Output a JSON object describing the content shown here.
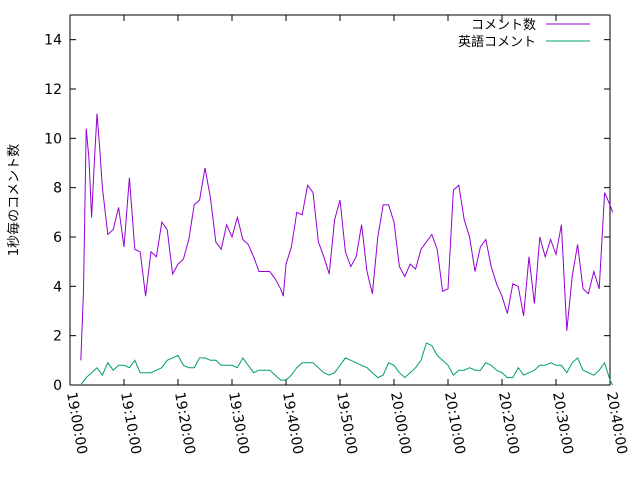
{
  "chart_data": {
    "type": "line",
    "title": "",
    "xlabel": "",
    "ylabel": "1秒毎のコメント数",
    "x_tick_labels": [
      "19:00:00",
      "19:10:00",
      "19:20:00",
      "19:30:00",
      "19:40:00",
      "19:50:00",
      "20:00:00",
      "20:10:00",
      "20:20:00",
      "20:30:00",
      "20:40:00"
    ],
    "y_tick_labels": [
      "0",
      "2",
      "4",
      "6",
      "8",
      "10",
      "12",
      "14"
    ],
    "xlim_minutes": [
      0,
      100
    ],
    "ylim": [
      0,
      15
    ],
    "grid": false,
    "legend_position": "top-right",
    "series": [
      {
        "name": "コメント数",
        "color": "#9400d3",
        "points": [
          [
            2.0,
            1.0
          ],
          [
            2.5,
            3.8
          ],
          [
            3.0,
            10.4
          ],
          [
            3.5,
            9.2
          ],
          [
            4.0,
            6.8
          ],
          [
            4.5,
            9.0
          ],
          [
            5.0,
            11.0
          ],
          [
            5.5,
            9.6
          ],
          [
            6.0,
            8.0
          ],
          [
            7.0,
            6.1
          ],
          [
            8.0,
            6.3
          ],
          [
            9.0,
            7.2
          ],
          [
            10.0,
            5.6
          ],
          [
            11.0,
            8.4
          ],
          [
            12.0,
            5.5
          ],
          [
            13.0,
            5.4
          ],
          [
            14.0,
            3.6
          ],
          [
            15.0,
            5.4
          ],
          [
            16.0,
            5.2
          ],
          [
            17.0,
            6.6
          ],
          [
            18.0,
            6.3
          ],
          [
            19.0,
            4.5
          ],
          [
            20.0,
            4.9
          ],
          [
            21.0,
            5.1
          ],
          [
            22.0,
            5.9
          ],
          [
            23.0,
            7.3
          ],
          [
            24.0,
            7.5
          ],
          [
            25.0,
            8.8
          ],
          [
            26.0,
            7.6
          ],
          [
            27.0,
            5.8
          ],
          [
            28.0,
            5.5
          ],
          [
            29.0,
            6.5
          ],
          [
            30.0,
            6.0
          ],
          [
            31.0,
            6.8
          ],
          [
            32.0,
            5.9
          ],
          [
            33.0,
            5.7
          ],
          [
            34.0,
            5.2
          ],
          [
            35.0,
            4.6
          ],
          [
            36.0,
            4.6
          ],
          [
            37.0,
            4.6
          ],
          [
            38.0,
            4.3
          ],
          [
            39.0,
            3.9
          ],
          [
            39.5,
            3.6
          ],
          [
            40.0,
            4.9
          ],
          [
            41.0,
            5.6
          ],
          [
            42.0,
            7.0
          ],
          [
            43.0,
            6.9
          ],
          [
            44.0,
            8.1
          ],
          [
            45.0,
            7.8
          ],
          [
            46.0,
            5.8
          ],
          [
            47.0,
            5.2
          ],
          [
            48.0,
            4.5
          ],
          [
            49.0,
            6.7
          ],
          [
            50.0,
            7.5
          ],
          [
            51.0,
            5.4
          ],
          [
            52.0,
            4.8
          ],
          [
            53.0,
            5.2
          ],
          [
            54.0,
            6.5
          ],
          [
            55.0,
            4.6
          ],
          [
            56.0,
            3.7
          ],
          [
            57.0,
            6.0
          ],
          [
            58.0,
            7.3
          ],
          [
            59.0,
            7.3
          ],
          [
            60.0,
            6.6
          ],
          [
            61.0,
            4.8
          ],
          [
            62.0,
            4.4
          ],
          [
            63.0,
            4.9
          ],
          [
            64.0,
            4.7
          ],
          [
            65.0,
            5.5
          ],
          [
            66.0,
            5.8
          ],
          [
            67.0,
            6.1
          ],
          [
            68.0,
            5.5
          ],
          [
            69.0,
            3.8
          ],
          [
            70.0,
            3.9
          ],
          [
            71.0,
            7.9
          ],
          [
            72.0,
            8.1
          ],
          [
            73.0,
            6.7
          ],
          [
            74.0,
            6.0
          ],
          [
            75.0,
            4.6
          ],
          [
            76.0,
            5.6
          ],
          [
            77.0,
            5.9
          ],
          [
            78.0,
            4.8
          ],
          [
            79.0,
            4.1
          ],
          [
            80.0,
            3.6
          ],
          [
            81.0,
            2.9
          ],
          [
            82.0,
            4.1
          ],
          [
            83.0,
            4.0
          ],
          [
            84.0,
            2.8
          ],
          [
            85.0,
            5.2
          ],
          [
            86.0,
            3.3
          ],
          [
            87.0,
            6.0
          ],
          [
            88.0,
            5.2
          ],
          [
            89.0,
            5.9
          ],
          [
            90.0,
            5.3
          ],
          [
            91.0,
            6.5
          ],
          [
            92.0,
            2.2
          ],
          [
            93.0,
            4.4
          ],
          [
            94.0,
            5.7
          ],
          [
            95.0,
            3.9
          ],
          [
            96.0,
            3.7
          ],
          [
            97.0,
            4.6
          ],
          [
            98.0,
            3.9
          ],
          [
            99.0,
            7.8
          ],
          [
            100.0,
            7.3
          ],
          [
            100.5,
            7.0
          ]
        ]
      },
      {
        "name": "英語コメント",
        "color": "#009e73",
        "points": [
          [
            2.0,
            0.0
          ],
          [
            3.0,
            0.3
          ],
          [
            4.0,
            0.5
          ],
          [
            5.0,
            0.7
          ],
          [
            6.0,
            0.4
          ],
          [
            7.0,
            0.9
          ],
          [
            8.0,
            0.6
          ],
          [
            9.0,
            0.8
          ],
          [
            10.0,
            0.8
          ],
          [
            11.0,
            0.7
          ],
          [
            12.0,
            1.0
          ],
          [
            13.0,
            0.5
          ],
          [
            14.0,
            0.5
          ],
          [
            15.0,
            0.5
          ],
          [
            16.0,
            0.6
          ],
          [
            17.0,
            0.7
          ],
          [
            18.0,
            1.0
          ],
          [
            19.0,
            1.1
          ],
          [
            20.0,
            1.2
          ],
          [
            21.0,
            0.8
          ],
          [
            22.0,
            0.7
          ],
          [
            23.0,
            0.7
          ],
          [
            24.0,
            1.1
          ],
          [
            25.0,
            1.1
          ],
          [
            26.0,
            1.0
          ],
          [
            27.0,
            1.0
          ],
          [
            28.0,
            0.8
          ],
          [
            29.0,
            0.8
          ],
          [
            30.0,
            0.8
          ],
          [
            31.0,
            0.7
          ],
          [
            32.0,
            1.1
          ],
          [
            33.0,
            0.8
          ],
          [
            34.0,
            0.5
          ],
          [
            35.0,
            0.6
          ],
          [
            36.0,
            0.6
          ],
          [
            37.0,
            0.6
          ],
          [
            38.0,
            0.4
          ],
          [
            39.0,
            0.2
          ],
          [
            40.0,
            0.2
          ],
          [
            41.0,
            0.4
          ],
          [
            42.0,
            0.7
          ],
          [
            43.0,
            0.9
          ],
          [
            44.0,
            0.9
          ],
          [
            45.0,
            0.9
          ],
          [
            46.0,
            0.7
          ],
          [
            47.0,
            0.5
          ],
          [
            48.0,
            0.4
          ],
          [
            49.0,
            0.5
          ],
          [
            50.0,
            0.8
          ],
          [
            51.0,
            1.1
          ],
          [
            52.0,
            1.0
          ],
          [
            53.0,
            0.9
          ],
          [
            54.0,
            0.8
          ],
          [
            55.0,
            0.7
          ],
          [
            56.0,
            0.5
          ],
          [
            57.0,
            0.3
          ],
          [
            58.0,
            0.4
          ],
          [
            59.0,
            0.9
          ],
          [
            60.0,
            0.8
          ],
          [
            61.0,
            0.5
          ],
          [
            62.0,
            0.3
          ],
          [
            63.0,
            0.5
          ],
          [
            64.0,
            0.7
          ],
          [
            65.0,
            1.0
          ],
          [
            66.0,
            1.7
          ],
          [
            67.0,
            1.6
          ],
          [
            68.0,
            1.2
          ],
          [
            69.0,
            1.0
          ],
          [
            70.0,
            0.8
          ],
          [
            71.0,
            0.4
          ],
          [
            72.0,
            0.6
          ],
          [
            73.0,
            0.6
          ],
          [
            74.0,
            0.7
          ],
          [
            75.0,
            0.6
          ],
          [
            76.0,
            0.6
          ],
          [
            77.0,
            0.9
          ],
          [
            78.0,
            0.8
          ],
          [
            79.0,
            0.6
          ],
          [
            80.0,
            0.5
          ],
          [
            81.0,
            0.3
          ],
          [
            82.0,
            0.3
          ],
          [
            83.0,
            0.7
          ],
          [
            84.0,
            0.4
          ],
          [
            85.0,
            0.5
          ],
          [
            86.0,
            0.6
          ],
          [
            87.0,
            0.8
          ],
          [
            88.0,
            0.8
          ],
          [
            89.0,
            0.9
          ],
          [
            90.0,
            0.8
          ],
          [
            91.0,
            0.8
          ],
          [
            92.0,
            0.5
          ],
          [
            93.0,
            0.9
          ],
          [
            94.0,
            1.1
          ],
          [
            95.0,
            0.6
          ],
          [
            96.0,
            0.5
          ],
          [
            97.0,
            0.4
          ],
          [
            98.0,
            0.6
          ],
          [
            99.0,
            0.9
          ],
          [
            100.0,
            0.2
          ],
          [
            100.5,
            0.0
          ]
        ]
      }
    ]
  }
}
